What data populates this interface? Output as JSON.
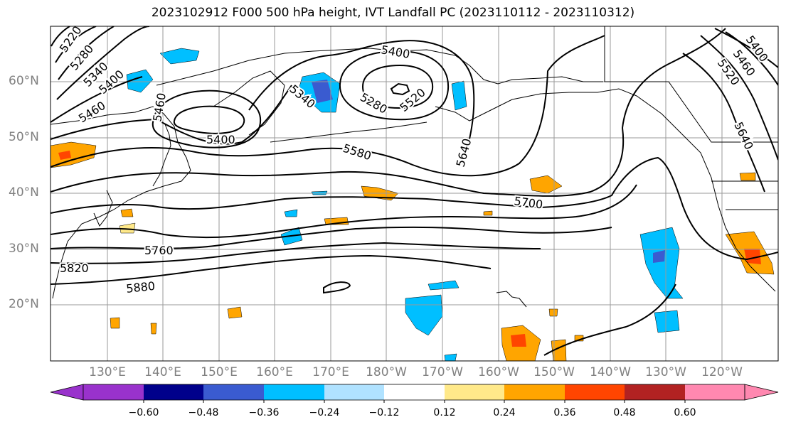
{
  "title": "2023102912 F000 500 hPa height, IVT Landfall PC (2023110112 - 2023110312)",
  "map_data": {
    "projection": "cylindrical",
    "lon_range": [
      120,
      245
    ],
    "lat_range": [
      10,
      70
    ],
    "latitude_labels": [
      "60°N",
      "50°N",
      "40°N",
      "30°N",
      "20°N"
    ],
    "longitude_labels": [
      "130°E",
      "140°E",
      "150°E",
      "160°E",
      "170°E",
      "180°W",
      "170°W",
      "160°W",
      "150°W",
      "140°W",
      "130°W",
      "120°W"
    ],
    "contour_field": "500 hPa height",
    "contour_labels": [
      "5220",
      "5280",
      "5340",
      "5400",
      "5460",
      "5400",
      "5460",
      "5400",
      "5340",
      "5280",
      "5520",
      "5580",
      "5640",
      "5400",
      "5460",
      "5520",
      "5640",
      "5700",
      "5760",
      "5820",
      "5880"
    ],
    "shading_field": "IVT Landfall PC"
  },
  "colorbar": {
    "ticks": [
      "−0.60",
      "−0.48",
      "−0.36",
      "−0.24",
      "−0.12",
      "0.12",
      "0.24",
      "0.36",
      "0.48",
      "0.60"
    ],
    "colors": [
      "#9932cc",
      "#00008b",
      "#3a5bd0",
      "#00bfff",
      "#b0e2ff",
      "#ffffff",
      "#ffe98a",
      "#ffa500",
      "#ff4500",
      "#b22222",
      "#ff88b0"
    ]
  }
}
